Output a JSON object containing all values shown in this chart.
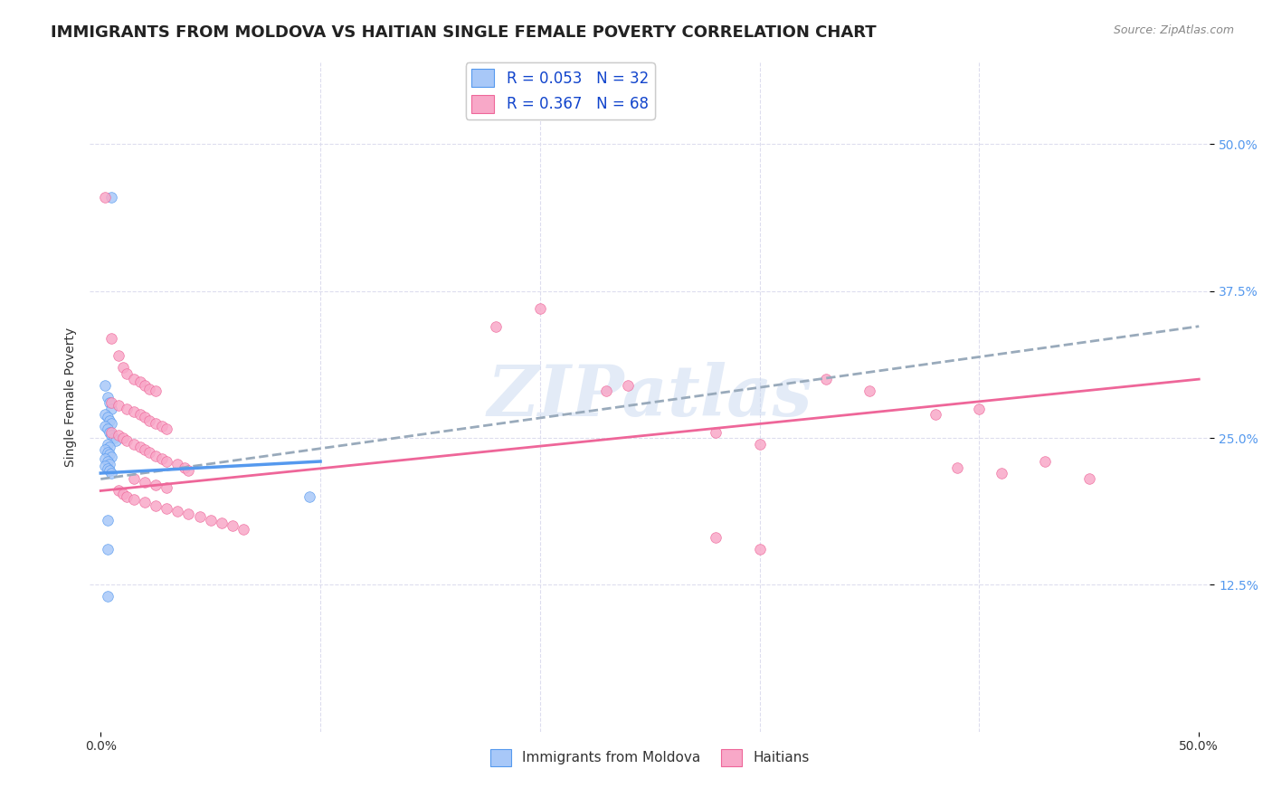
{
  "title": "IMMIGRANTS FROM MOLDOVA VS HAITIAN SINGLE FEMALE POVERTY CORRELATION CHART",
  "source": "Source: ZipAtlas.com",
  "ylabel": "Single Female Poverty",
  "xlim": [
    0.0,
    0.5
  ],
  "ylim": [
    0.0,
    0.55
  ],
  "watermark": "ZIPatlas",
  "scatter_moldova": [
    [
      0.005,
      0.455
    ],
    [
      0.002,
      0.295
    ],
    [
      0.003,
      0.285
    ],
    [
      0.004,
      0.28
    ],
    [
      0.005,
      0.275
    ],
    [
      0.002,
      0.27
    ],
    [
      0.003,
      0.268
    ],
    [
      0.004,
      0.265
    ],
    [
      0.005,
      0.262
    ],
    [
      0.002,
      0.26
    ],
    [
      0.003,
      0.258
    ],
    [
      0.004,
      0.255
    ],
    [
      0.005,
      0.252
    ],
    [
      0.006,
      0.25
    ],
    [
      0.007,
      0.248
    ],
    [
      0.003,
      0.245
    ],
    [
      0.004,
      0.242
    ],
    [
      0.002,
      0.24
    ],
    [
      0.003,
      0.238
    ],
    [
      0.004,
      0.236
    ],
    [
      0.005,
      0.234
    ],
    [
      0.002,
      0.232
    ],
    [
      0.003,
      0.23
    ],
    [
      0.004,
      0.228
    ],
    [
      0.002,
      0.226
    ],
    [
      0.003,
      0.224
    ],
    [
      0.004,
      0.222
    ],
    [
      0.005,
      0.22
    ],
    [
      0.003,
      0.18
    ],
    [
      0.003,
      0.155
    ],
    [
      0.003,
      0.115
    ],
    [
      0.095,
      0.2
    ]
  ],
  "scatter_haitian": [
    [
      0.002,
      0.455
    ],
    [
      0.005,
      0.335
    ],
    [
      0.008,
      0.32
    ],
    [
      0.01,
      0.31
    ],
    [
      0.012,
      0.305
    ],
    [
      0.015,
      0.3
    ],
    [
      0.018,
      0.298
    ],
    [
      0.02,
      0.295
    ],
    [
      0.022,
      0.292
    ],
    [
      0.025,
      0.29
    ],
    [
      0.005,
      0.28
    ],
    [
      0.008,
      0.278
    ],
    [
      0.012,
      0.275
    ],
    [
      0.015,
      0.272
    ],
    [
      0.018,
      0.27
    ],
    [
      0.02,
      0.268
    ],
    [
      0.022,
      0.265
    ],
    [
      0.025,
      0.262
    ],
    [
      0.028,
      0.26
    ],
    [
      0.03,
      0.258
    ],
    [
      0.005,
      0.255
    ],
    [
      0.008,
      0.252
    ],
    [
      0.01,
      0.25
    ],
    [
      0.012,
      0.248
    ],
    [
      0.015,
      0.245
    ],
    [
      0.018,
      0.242
    ],
    [
      0.02,
      0.24
    ],
    [
      0.022,
      0.238
    ],
    [
      0.025,
      0.235
    ],
    [
      0.028,
      0.232
    ],
    [
      0.03,
      0.23
    ],
    [
      0.035,
      0.228
    ],
    [
      0.038,
      0.225
    ],
    [
      0.04,
      0.222
    ],
    [
      0.015,
      0.215
    ],
    [
      0.02,
      0.212
    ],
    [
      0.025,
      0.21
    ],
    [
      0.03,
      0.208
    ],
    [
      0.008,
      0.205
    ],
    [
      0.01,
      0.202
    ],
    [
      0.012,
      0.2
    ],
    [
      0.015,
      0.198
    ],
    [
      0.02,
      0.195
    ],
    [
      0.025,
      0.192
    ],
    [
      0.03,
      0.19
    ],
    [
      0.035,
      0.188
    ],
    [
      0.04,
      0.185
    ],
    [
      0.045,
      0.183
    ],
    [
      0.05,
      0.18
    ],
    [
      0.055,
      0.178
    ],
    [
      0.06,
      0.175
    ],
    [
      0.065,
      0.172
    ],
    [
      0.18,
      0.345
    ],
    [
      0.2,
      0.36
    ],
    [
      0.23,
      0.29
    ],
    [
      0.24,
      0.295
    ],
    [
      0.28,
      0.255
    ],
    [
      0.3,
      0.245
    ],
    [
      0.33,
      0.3
    ],
    [
      0.35,
      0.29
    ],
    [
      0.38,
      0.27
    ],
    [
      0.39,
      0.225
    ],
    [
      0.4,
      0.275
    ],
    [
      0.41,
      0.22
    ],
    [
      0.43,
      0.23
    ],
    [
      0.45,
      0.215
    ],
    [
      0.28,
      0.165
    ],
    [
      0.3,
      0.155
    ]
  ],
  "color_moldova": "#a8c8f8",
  "color_haitian": "#f8a8c8",
  "trendline_moldova_color": "#5599ee",
  "trendline_haitian_color": "#ee6699",
  "trendline_dashed_color": "#99aabb",
  "background_color": "#ffffff",
  "grid_color": "#ddddee",
  "title_fontsize": 13,
  "axis_label_fontsize": 10,
  "tick_fontsize": 10,
  "legend_fontsize": 12
}
